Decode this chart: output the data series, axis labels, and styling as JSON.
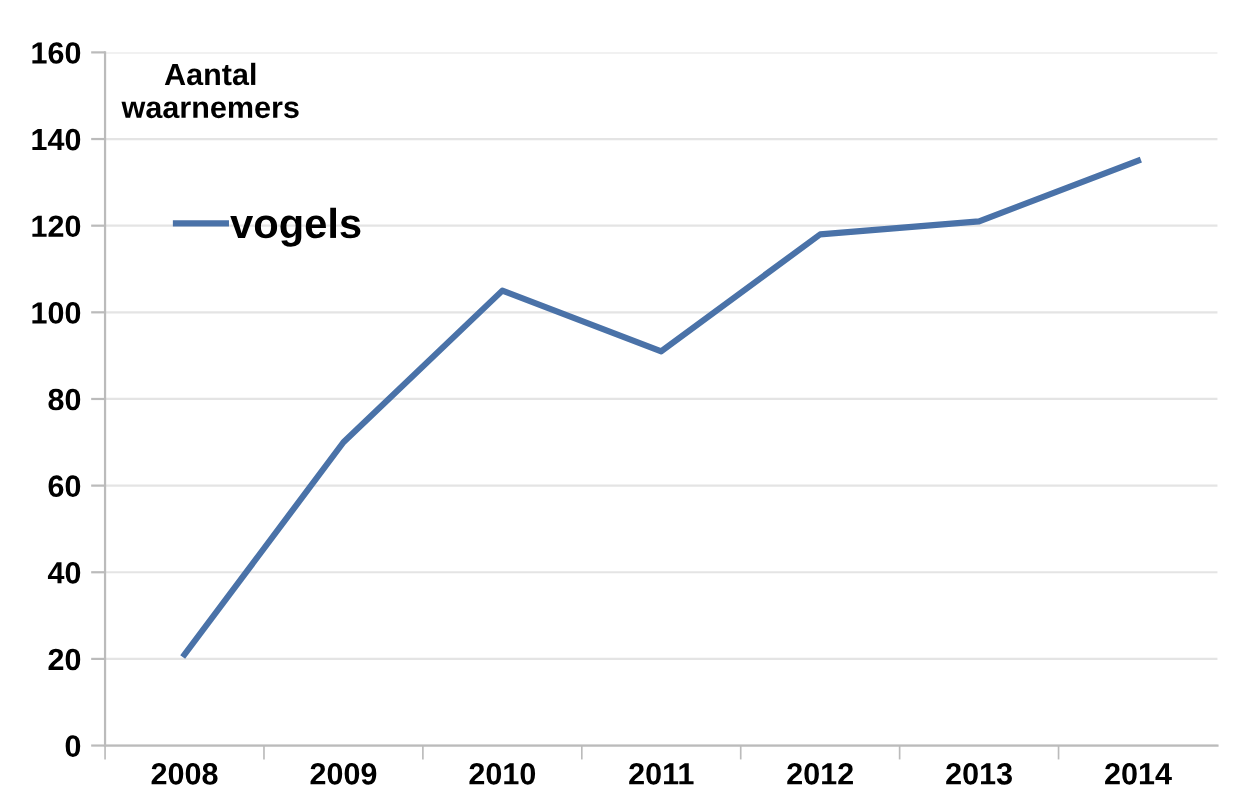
{
  "chart_data": {
    "type": "line",
    "title": "Aantal\nwaarnemers",
    "categories": [
      "2008",
      "2009",
      "2010",
      "2011",
      "2012",
      "2013",
      "2014"
    ],
    "series": [
      {
        "name": "vogels",
        "color": "#4a72a8",
        "values": [
          21,
          70,
          105,
          91,
          118,
          121,
          135
        ]
      }
    ],
    "ylim": [
      0,
      160
    ],
    "yticks": [
      0,
      20,
      40,
      60,
      80,
      100,
      120,
      140,
      160
    ],
    "grid": "y",
    "legend": "top left",
    "marker": "none",
    "line_style": "solid"
  }
}
